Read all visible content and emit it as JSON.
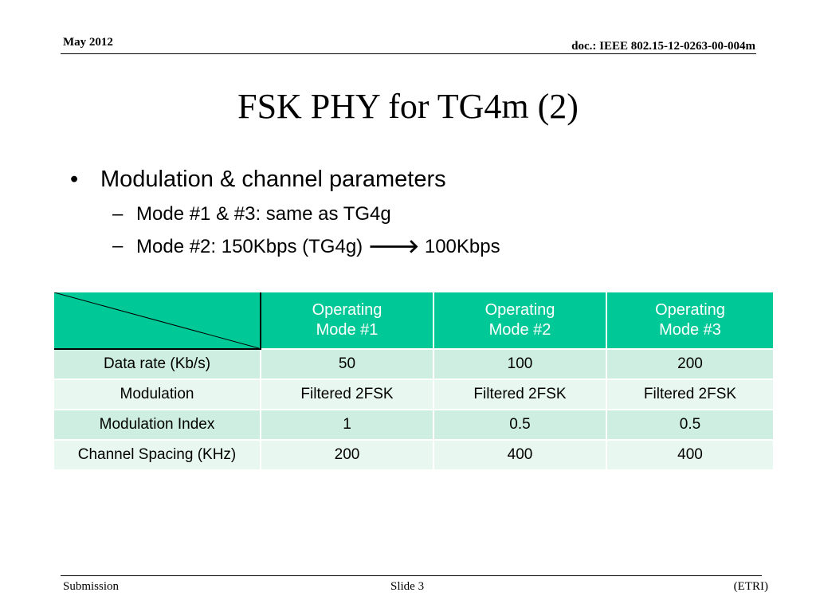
{
  "header": {
    "date": "May 2012",
    "doc_id": "doc.: IEEE 802.15-12-0263-00-004m"
  },
  "title": "FSK PHY for TG4m (2)",
  "bullets": {
    "level1": {
      "mark": "•",
      "text": "Modulation & channel parameters"
    },
    "level2": [
      {
        "mark": "–",
        "text": "Mode #1 & #3: same as TG4g"
      },
      {
        "mark": "–",
        "text_before": "Mode #2: 150Kbps (TG4g) ",
        "arrow": "🡒",
        "text_after": " 100Kbps"
      }
    ]
  },
  "table": {
    "headers": [
      {
        "line1": "Operating",
        "line2": "Mode #1"
      },
      {
        "line1": "Operating",
        "line2": "Mode #2"
      },
      {
        "line1": "Operating",
        "line2": "Mode #3"
      }
    ],
    "rows": [
      {
        "label": "Data rate (Kb/s)",
        "values": [
          "50",
          "100",
          "200"
        ]
      },
      {
        "label": "Modulation",
        "values": [
          "Filtered 2FSK",
          "Filtered 2FSK",
          "Filtered 2FSK"
        ]
      },
      {
        "label": "Modulation Index",
        "values": [
          "1",
          "0.5",
          "0.5"
        ]
      },
      {
        "label": "Channel Spacing (KHz)",
        "values": [
          "200",
          "400",
          "400"
        ]
      }
    ],
    "colors": {
      "header_bg": "#00c896",
      "row_odd_bg": "#cdeee0",
      "row_even_bg": "#e8f7f0"
    }
  },
  "footer": {
    "left": "Submission",
    "center": "Slide 3",
    "right": "(ETRI)"
  }
}
